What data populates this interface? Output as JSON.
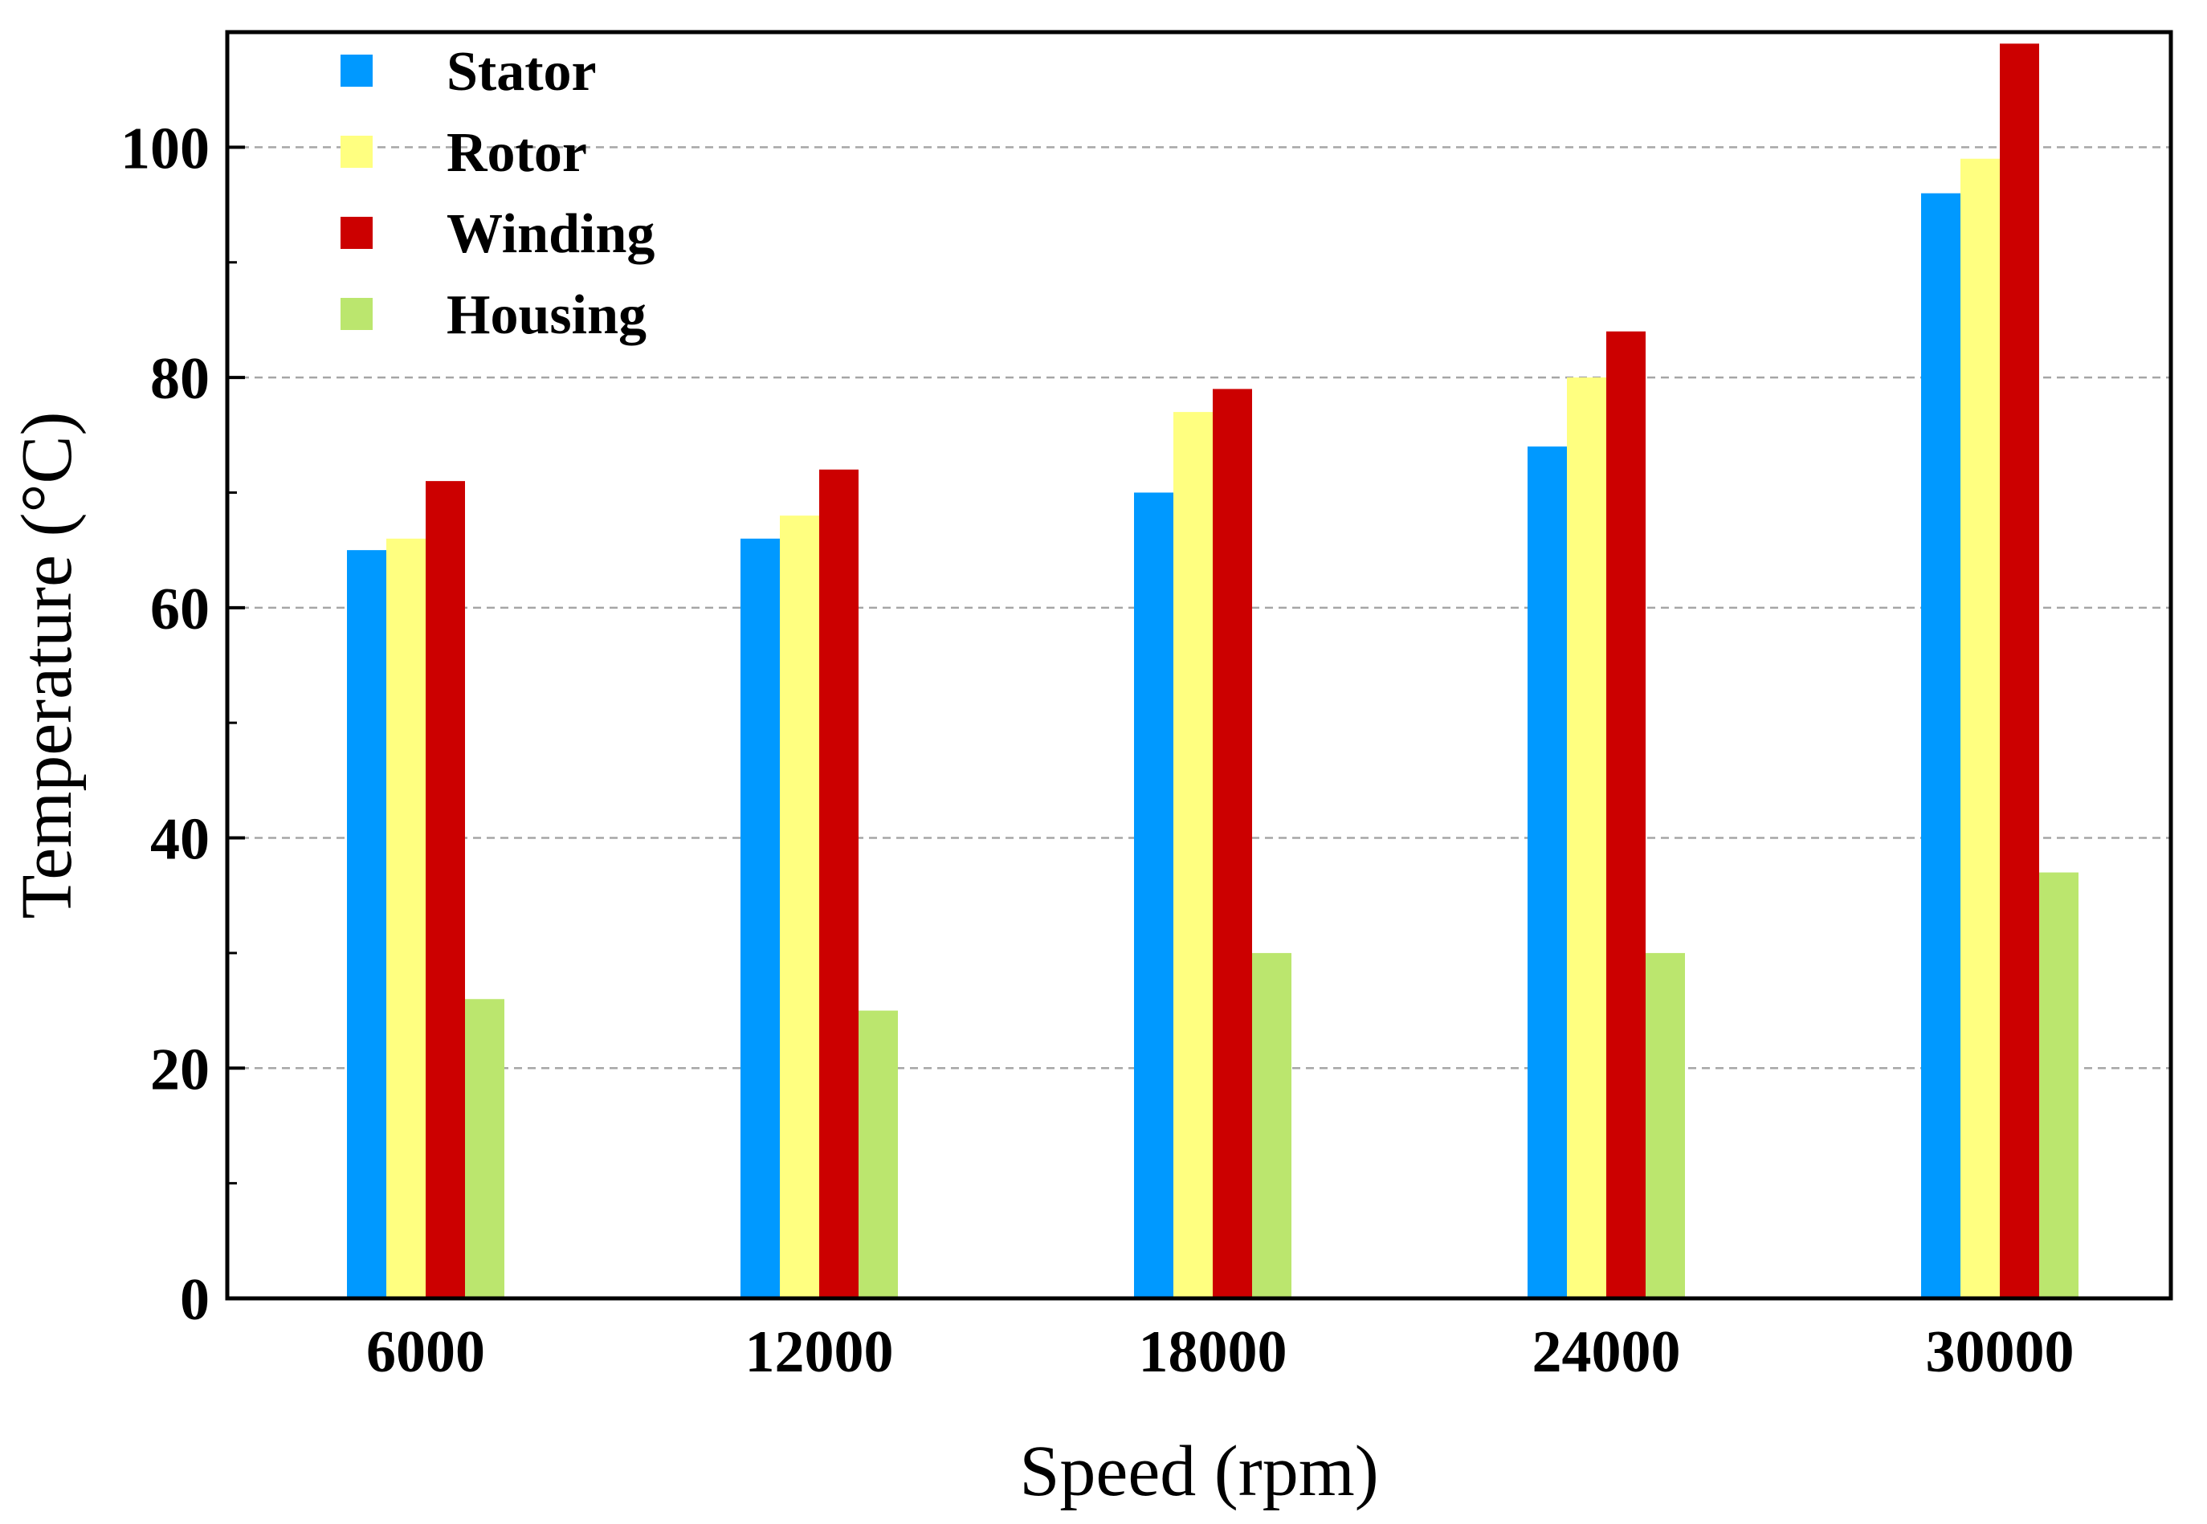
{
  "chart_data": {
    "type": "bar",
    "title": "",
    "xlabel": "Speed (rpm)",
    "ylabel": "Temperature (°C)",
    "categories": [
      "6000",
      "12000",
      "18000",
      "24000",
      "30000"
    ],
    "series": [
      {
        "name": "Stator",
        "color": "#0099ff",
        "values": [
          65,
          66,
          70,
          74,
          96
        ]
      },
      {
        "name": "Rotor",
        "color": "#ffff80",
        "values": [
          66,
          68,
          77,
          80,
          99
        ]
      },
      {
        "name": "Winding",
        "color": "#cc0000",
        "values": [
          71,
          72,
          79,
          84,
          109
        ]
      },
      {
        "name": "Housing",
        "color": "#bbe66e",
        "values": [
          26,
          25,
          30,
          30,
          37
        ]
      }
    ],
    "ylim": [
      0,
      110
    ],
    "yticks": [
      0,
      20,
      40,
      60,
      80,
      100
    ],
    "yticks_minor": [
      10,
      30,
      50,
      70,
      90
    ],
    "grid": "horizontal dashed at major y ticks",
    "legend_position": "top-left"
  }
}
